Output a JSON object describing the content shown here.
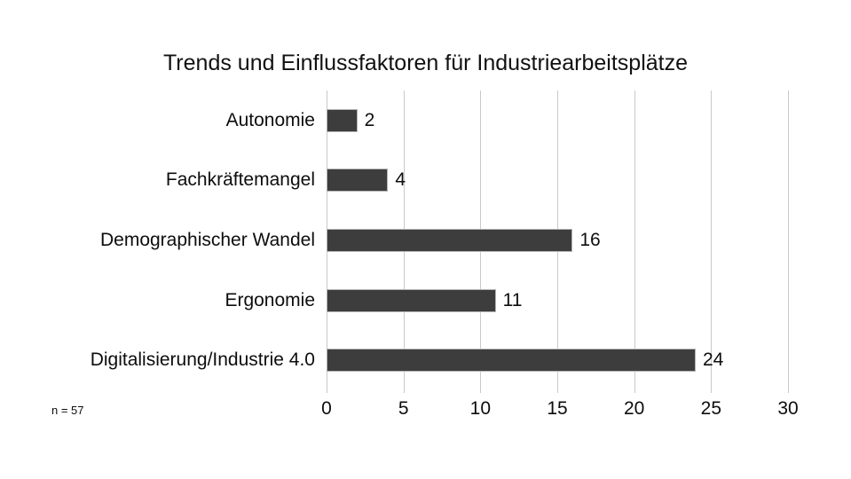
{
  "chart_data": {
    "type": "bar",
    "orientation": "horizontal",
    "title": "Trends und Einflussfaktoren für Industriearbeitsplätze",
    "categories": [
      "Autonomie",
      "Fachkräftemangel",
      "Demographischer Wandel",
      "Ergonomie",
      "Digitalisierung/Industrie 4.0"
    ],
    "values": [
      2,
      4,
      16,
      11,
      24
    ],
    "xlabel": "",
    "ylabel": "",
    "xlim": [
      0,
      30
    ],
    "xticks": [
      0,
      5,
      10,
      15,
      20,
      25,
      30
    ],
    "grid": true,
    "legend": false,
    "note": "n = 57",
    "colors": {
      "bar_fill": "#3d3d3d",
      "bar_border": "#b3b3b3",
      "gridline": "#c9c9c9",
      "text": "#0d0d0d",
      "background": "#ffffff"
    }
  }
}
